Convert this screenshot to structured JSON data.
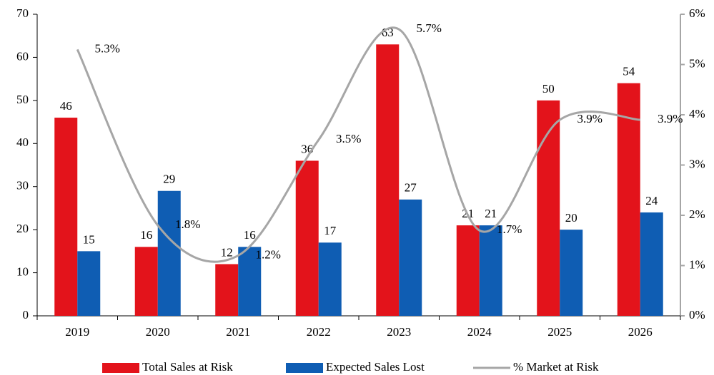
{
  "chart_data": {
    "type": "bar_line",
    "categories": [
      "2019",
      "2020",
      "2021",
      "2022",
      "2023",
      "2024",
      "2025",
      "2026"
    ],
    "series": [
      {
        "name": "Total Sales at Risk",
        "type": "bar",
        "color": "#e3131b",
        "values": [
          46,
          16,
          12,
          36,
          63,
          21,
          50,
          54
        ]
      },
      {
        "name": "Expected Sales Lost",
        "type": "bar",
        "color": "#0f5db3",
        "values": [
          15,
          29,
          16,
          17,
          27,
          21,
          20,
          24
        ]
      },
      {
        "name": "% Market at Risk",
        "type": "line",
        "axis": "y2",
        "color": "#a6a6a6",
        "smooth": true,
        "values": [
          5.3,
          1.8,
          1.2,
          3.5,
          5.7,
          1.7,
          3.9,
          3.9
        ],
        "value_labels": [
          "5.3%",
          "1.8%",
          "1.2%",
          "3.5%",
          "5.7%",
          "1.7%",
          "3.9%",
          "3.9%"
        ]
      }
    ],
    "ylim": [
      0,
      70
    ],
    "yticks": [
      0,
      10,
      20,
      30,
      40,
      50,
      60,
      70
    ],
    "y2lim": [
      0,
      6
    ],
    "y2ticks": [
      {
        "value": 0,
        "label": "0%"
      },
      {
        "value": 1,
        "label": "1%"
      },
      {
        "value": 2,
        "label": "2%"
      },
      {
        "value": 3,
        "label": "3%"
      },
      {
        "value": 4,
        "label": "4%"
      },
      {
        "value": 5,
        "label": "5%"
      },
      {
        "value": 6,
        "label": "6%"
      }
    ],
    "grid": false,
    "legend": "bottom"
  }
}
